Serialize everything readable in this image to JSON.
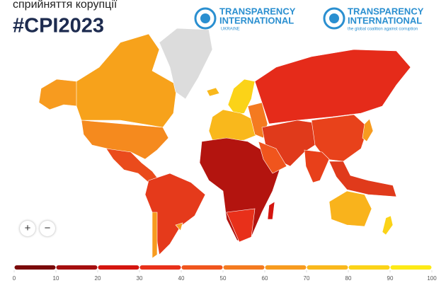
{
  "header": {
    "title": "сприйняття корупції",
    "hashtag": "#CPI2023"
  },
  "logos": [
    {
      "line1": "TRANSPARENCY",
      "line2": "INTERNATIONAL",
      "tagline": "UKRAINE"
    },
    {
      "line1": "TRANSPARENCY",
      "line2": "INTERNATIONAL",
      "tagline": "the global coalition against corruption"
    }
  ],
  "controls": {
    "zoom_in": "+",
    "zoom_out": "−"
  },
  "legend": {
    "ticks": [
      0,
      10,
      20,
      30,
      40,
      50,
      60,
      70,
      80,
      90,
      100
    ],
    "colors": [
      "#7a0a0a",
      "#a50f0f",
      "#d4150f",
      "#e8301a",
      "#f0551d",
      "#f47a20",
      "#f79b1f",
      "#f9b81c",
      "#fbd318",
      "#fdea16"
    ]
  }
}
